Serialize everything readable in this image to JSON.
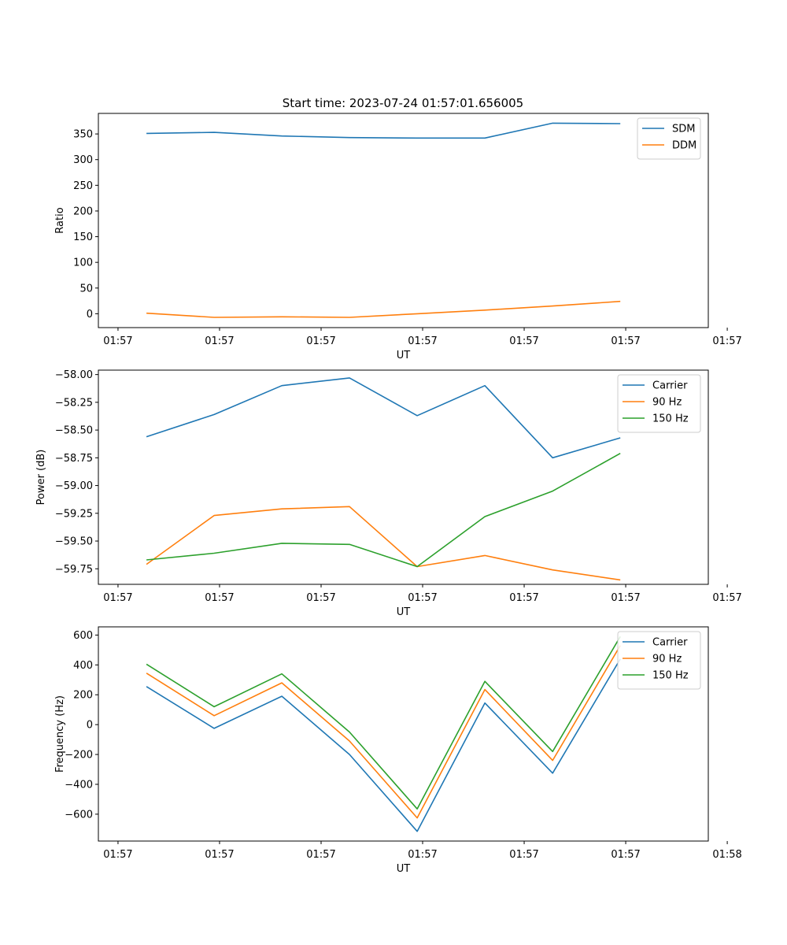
{
  "figure_title": "Start time: 2023-07-24 01:57:01.656005",
  "colors": {
    "series1": "#1f77b4",
    "series2": "#ff7f0e",
    "series3": "#2ca02c"
  },
  "chart_data": [
    {
      "type": "line",
      "title": "Start time: 2023-07-24 01:57:01.656005",
      "xlabel": "UT",
      "ylabel": "Ratio",
      "xlim": [
        -0.29,
        8.72
      ],
      "ylim": [
        -27,
        390
      ],
      "x": [
        0.42,
        1.42,
        2.42,
        3.42,
        4.42,
        5.42,
        6.42,
        7.42
      ],
      "xticks": [
        0,
        1.5,
        3,
        4.5,
        6,
        7.5,
        9
      ],
      "xtick_labels": [
        "01:57",
        "01:57",
        "01:57",
        "01:57",
        "01:57",
        "01:57",
        "01:57"
      ],
      "yticks": [
        0,
        50,
        100,
        150,
        200,
        250,
        300,
        350
      ],
      "ytick_labels": [
        "0",
        "50",
        "100",
        "150",
        "200",
        "250",
        "300",
        "350"
      ],
      "legend_position": "top-right",
      "series": [
        {
          "name": "SDM",
          "values": [
            351,
            353,
            346,
            343,
            342,
            342,
            371,
            370
          ]
        },
        {
          "name": "DDM",
          "values": [
            1,
            -7,
            -6,
            -7,
            0,
            7,
            15,
            24
          ]
        }
      ]
    },
    {
      "type": "line",
      "xlabel": "UT",
      "ylabel": "Power (dB)",
      "xlim": [
        -0.29,
        8.72
      ],
      "ylim": [
        -59.89,
        -57.96
      ],
      "x": [
        0.42,
        1.42,
        2.42,
        3.42,
        4.42,
        5.42,
        6.42,
        7.42
      ],
      "xticks": [
        0,
        1.5,
        3,
        4.5,
        6,
        7.5,
        9
      ],
      "xtick_labels": [
        "01:57",
        "01:57",
        "01:57",
        "01:57",
        "01:57",
        "01:57",
        "01:57"
      ],
      "yticks": [
        -59.75,
        -59.5,
        -59.25,
        -59.0,
        -58.75,
        -58.5,
        -58.25,
        -58.0
      ],
      "ytick_labels": [
        "−59.75",
        "−59.50",
        "−59.25",
        "−59.00",
        "−58.75",
        "−58.50",
        "−58.25",
        "−58.00"
      ],
      "legend_position": "top-right",
      "series": [
        {
          "name": "Carrier",
          "values": [
            -58.56,
            -58.36,
            -58.1,
            -58.03,
            -58.37,
            -58.1,
            -58.75,
            -58.57
          ]
        },
        {
          "name": "90 Hz",
          "values": [
            -59.71,
            -59.27,
            -59.21,
            -59.19,
            -59.73,
            -59.63,
            -59.76,
            -59.85
          ]
        },
        {
          "name": "150 Hz",
          "values": [
            -59.67,
            -59.61,
            -59.52,
            -59.53,
            -59.73,
            -59.28,
            -59.05,
            -58.71
          ]
        }
      ]
    },
    {
      "type": "line",
      "xlabel": "UT",
      "ylabel": "Frequency (Hz)",
      "xlim": [
        -0.29,
        8.72
      ],
      "ylim": [
        -780,
        655
      ],
      "x": [
        0.42,
        1.42,
        2.42,
        3.42,
        4.42,
        5.42,
        6.42,
        7.42
      ],
      "xticks": [
        0,
        1.5,
        3,
        4.5,
        6,
        7.5,
        9
      ],
      "xtick_labels": [
        "01:57",
        "01:57",
        "01:57",
        "01:57",
        "01:57",
        "01:57",
        "01:58"
      ],
      "yticks": [
        -600,
        -400,
        -200,
        0,
        200,
        400,
        600
      ],
      "ytick_labels": [
        "−600",
        "−400",
        "−200",
        "0",
        "200",
        "400",
        "600"
      ],
      "legend_position": "top-right",
      "series": [
        {
          "name": "Carrier",
          "values": [
            255,
            -25,
            190,
            -200,
            -715,
            145,
            -325,
            440
          ]
        },
        {
          "name": "90 Hz",
          "values": [
            345,
            60,
            280,
            -110,
            -625,
            235,
            -240,
            530
          ]
        },
        {
          "name": "150 Hz",
          "values": [
            405,
            120,
            340,
            -50,
            -565,
            290,
            -180,
            590
          ]
        }
      ]
    }
  ]
}
